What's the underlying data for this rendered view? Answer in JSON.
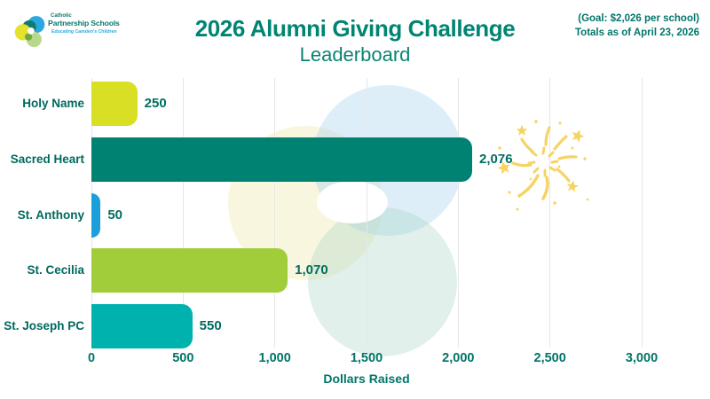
{
  "logo": {
    "line1": "Catholic",
    "line2": "Partnership Schools",
    "tagline": "Educating Camden's Children"
  },
  "header": {
    "title": "2026 Alumni Giving Challenge",
    "subtitle": "Leaderboard",
    "goal_line1": "(Goal: $2,026 per school)",
    "goal_line2": "Totals as of April 23, 2026"
  },
  "chart_data": {
    "type": "bar",
    "orientation": "horizontal",
    "categories": [
      "Holy Name",
      "Sacred Heart",
      "St. Anthony",
      "St. Cecilia",
      "St. Joseph PC"
    ],
    "values": [
      250,
      2076,
      50,
      1070,
      550
    ],
    "value_labels": [
      "250",
      "2,076",
      "50",
      "1,070",
      "550"
    ],
    "bar_colors": [
      "#d8df25",
      "#008273",
      "#1b9fdb",
      "#a2cd3a",
      "#00b2ad"
    ],
    "title": "2026 Alumni Giving Challenge",
    "subtitle": "Leaderboard",
    "xlabel": "Dollars Raised",
    "xlim": [
      0,
      3000
    ],
    "xticks": [
      0,
      500,
      1000,
      1500,
      2000,
      2500,
      3000
    ],
    "xtick_labels": [
      "0",
      "500",
      "1,000",
      "1,500",
      "2,000",
      "2,500",
      "3,000"
    ],
    "grid": "vertical-at-ticks",
    "legend": "none"
  },
  "colors": {
    "title_teal": "#008573",
    "chart_text_teal": "#006d60",
    "grid_gray": "#e7e7e7",
    "fireworks_yellow": "#f6d464",
    "watermark_yellow": "#ebe090",
    "watermark_blue": "#a2d0eb",
    "watermark_teal": "#a7d2c3"
  }
}
